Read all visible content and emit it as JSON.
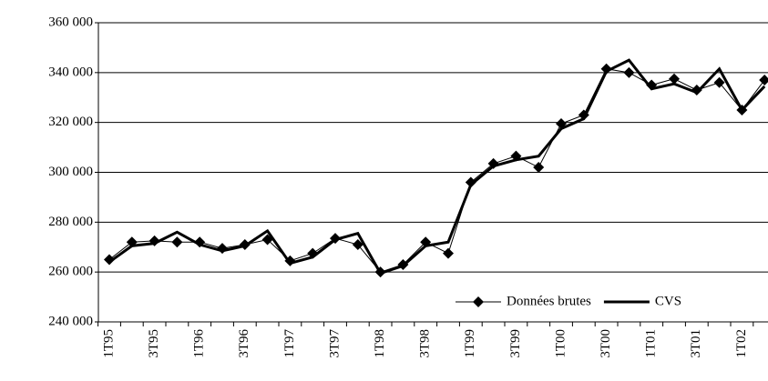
{
  "chart_data": {
    "type": "line",
    "categories": [
      "1T95",
      null,
      "3T95",
      null,
      "1T96",
      null,
      "3T96",
      null,
      "1T97",
      null,
      "3T97",
      null,
      "1T98",
      null,
      "3T98",
      null,
      "1T99",
      null,
      "3T99",
      null,
      "1T00",
      null,
      "3T00",
      null,
      "1T01",
      null,
      "3T01",
      null,
      "1T02",
      null
    ],
    "series": [
      {
        "name": "Données brutes",
        "color": "#000000",
        "marker": "diamond",
        "values": [
          265000,
          272000,
          272500,
          272000,
          272000,
          269500,
          271000,
          273000,
          264500,
          267500,
          273500,
          271000,
          260000,
          263000,
          272000,
          267500,
          296000,
          303500,
          306500,
          302000,
          319500,
          323000,
          341500,
          340000,
          335000,
          337500,
          333000,
          336000,
          325000,
          337000
        ]
      },
      {
        "name": "CVS",
        "color": "#000000",
        "values": [
          264000,
          270500,
          271500,
          276000,
          271000,
          268500,
          270500,
          276500,
          263500,
          266000,
          273000,
          275500,
          259500,
          262500,
          270500,
          272000,
          295000,
          302500,
          305000,
          306500,
          317500,
          321500,
          340500,
          345000,
          333500,
          335500,
          332000,
          341500,
          325000,
          334500
        ]
      }
    ],
    "ylim": [
      240000,
      360000
    ],
    "yticks": [
      {
        "value": 240000,
        "label": "240 000"
      },
      {
        "value": 260000,
        "label": "260 000"
      },
      {
        "value": 280000,
        "label": "280 000"
      },
      {
        "value": 300000,
        "label": "300 000"
      },
      {
        "value": 320000,
        "label": "320 000"
      },
      {
        "value": 340000,
        "label": "340 000"
      },
      {
        "value": 360000,
        "label": "360 000"
      }
    ],
    "grid": true,
    "legend": "bottom-right"
  }
}
